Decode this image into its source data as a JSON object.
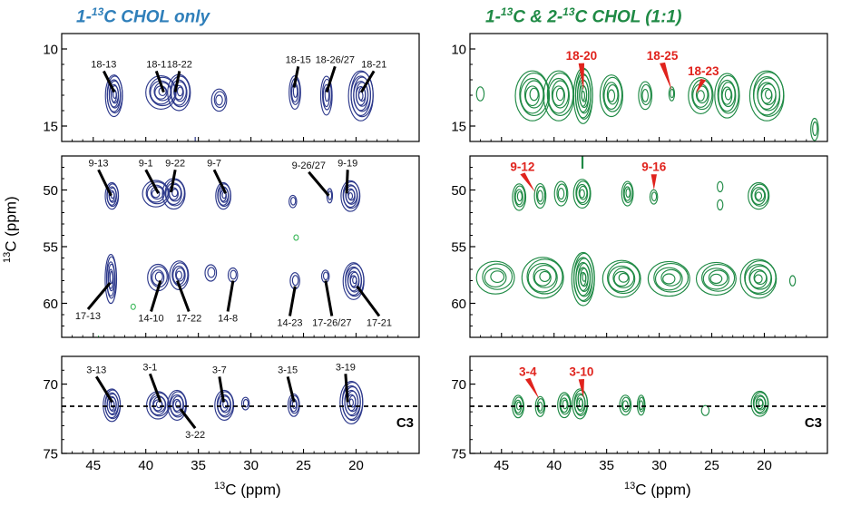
{
  "colors": {
    "left_contour": "#2e3a8c",
    "right_contour": "#1f8a45",
    "left_title": "#2f7fba",
    "right_title": "#1f8a45",
    "red_label": "#e0231d",
    "stray_green": "#2bb24c"
  },
  "chart_data": [
    {
      "type": "contour",
      "title": "1-13C CHOL only",
      "title_parts": {
        "pre": "1-",
        "sup": "13",
        "post": "C CHOL only"
      },
      "xlabel": "13C (ppm)",
      "xlabel_parts": {
        "sup": "13",
        "post": "C (ppm)"
      },
      "ylabel": "13C (ppm)",
      "ylabel_parts": {
        "sup": "13",
        "post": "C (ppm)"
      },
      "xlim": [
        48,
        14
      ],
      "xticks": [
        45,
        40,
        35,
        30,
        25,
        20
      ],
      "panels": [
        {
          "ylim": [
            9,
            16
          ],
          "yticks": [
            10,
            15
          ],
          "peaks": [
            {
              "x": 43.0,
              "y": 13.0,
              "sx": 0.9,
              "sy": 1.5,
              "levels": 8
            },
            {
              "x": 38.5,
              "y": 12.8,
              "sx": 1.6,
              "sy": 1.2,
              "levels": 6
            },
            {
              "x": 36.8,
              "y": 12.8,
              "sx": 1.2,
              "sy": 1.3,
              "levels": 6
            },
            {
              "x": 33.0,
              "y": 13.3,
              "sx": 0.8,
              "sy": 0.8,
              "levels": 3
            },
            {
              "x": 25.8,
              "y": 12.8,
              "sx": 0.6,
              "sy": 1.2,
              "levels": 4
            },
            {
              "x": 22.8,
              "y": 13.0,
              "sx": 0.6,
              "sy": 1.4,
              "levels": 4
            },
            {
              "x": 19.5,
              "y": 13.0,
              "sx": 1.3,
              "sy": 1.8,
              "levels": 9
            }
          ],
          "labels": [
            {
              "text": "18-13",
              "tx": 44.0,
              "ty": 11.2,
              "px": 43.0,
              "py": 12.8
            },
            {
              "text": "18-1",
              "tx": 39.0,
              "ty": 11.2,
              "px": 38.3,
              "py": 12.8
            },
            {
              "text": "18-22",
              "tx": 36.8,
              "ty": 11.2,
              "px": 37.2,
              "py": 12.8
            },
            {
              "text": "18-15",
              "tx": 25.5,
              "ty": 10.9,
              "px": 25.9,
              "py": 12.5
            },
            {
              "text": "18-26/27",
              "tx": 22.0,
              "ty": 10.9,
              "px": 22.8,
              "py": 12.8
            },
            {
              "text": "18-21",
              "tx": 18.3,
              "ty": 11.2,
              "px": 19.5,
              "py": 12.8
            }
          ]
        },
        {
          "ylim": [
            47,
            63
          ],
          "yticks": [
            50,
            55,
            60
          ],
          "peaks": [
            {
              "x": 43.2,
              "y": 50.5,
              "sx": 0.7,
              "sy": 1.3,
              "levels": 6
            },
            {
              "x": 39.0,
              "y": 50.3,
              "sx": 1.4,
              "sy": 1.3,
              "levels": 5
            },
            {
              "x": 37.3,
              "y": 50.3,
              "sx": 1.2,
              "sy": 1.5,
              "levels": 6
            },
            {
              "x": 32.6,
              "y": 50.5,
              "sx": 0.8,
              "sy": 1.3,
              "levels": 6
            },
            {
              "x": 26.0,
              "y": 51.0,
              "sx": 0.4,
              "sy": 0.6,
              "levels": 2
            },
            {
              "x": 22.5,
              "y": 50.5,
              "sx": 0.3,
              "sy": 0.7,
              "levels": 2
            },
            {
              "x": 20.5,
              "y": 50.5,
              "sx": 1.0,
              "sy": 1.5,
              "levels": 7
            },
            {
              "x": 43.3,
              "y": 57.8,
              "sx": 0.6,
              "sy": 2.4,
              "levels": 6
            },
            {
              "x": 38.8,
              "y": 57.7,
              "sx": 1.1,
              "sy": 1.3,
              "levels": 4
            },
            {
              "x": 36.8,
              "y": 57.5,
              "sx": 1.0,
              "sy": 1.4,
              "levels": 5
            },
            {
              "x": 33.8,
              "y": 57.3,
              "sx": 0.6,
              "sy": 0.8,
              "levels": 2
            },
            {
              "x": 31.7,
              "y": 57.5,
              "sx": 0.5,
              "sy": 0.7,
              "levels": 2
            },
            {
              "x": 25.8,
              "y": 58.0,
              "sx": 0.5,
              "sy": 0.8,
              "levels": 2
            },
            {
              "x": 22.9,
              "y": 57.6,
              "sx": 0.4,
              "sy": 0.6,
              "levels": 2
            },
            {
              "x": 20.2,
              "y": 58.0,
              "sx": 1.1,
              "sy": 1.8,
              "levels": 8
            }
          ],
          "labels": [
            {
              "text": "9-13",
              "tx": 44.5,
              "ty": 47.9,
              "px": 43.3,
              "py": 50.5
            },
            {
              "text": "9-1",
              "tx": 40.0,
              "ty": 47.9,
              "px": 38.8,
              "py": 50.3
            },
            {
              "text": "9-22",
              "tx": 37.2,
              "ty": 47.9,
              "px": 37.6,
              "py": 50.2
            },
            {
              "text": "9-7",
              "tx": 33.5,
              "ty": 47.9,
              "px": 32.4,
              "py": 50.3
            },
            {
              "text": "9-26/27",
              "tx": 24.5,
              "ty": 48.1,
              "px": 22.6,
              "py": 50.5
            },
            {
              "text": "9-19",
              "tx": 20.8,
              "ty": 47.9,
              "px": 20.9,
              "py": 50.3
            },
            {
              "text": "17-13",
              "tx": 45.5,
              "ty": 61.4,
              "px": 43.4,
              "py": 58.2
            },
            {
              "text": "14-10",
              "tx": 39.5,
              "ty": 61.6,
              "px": 38.6,
              "py": 58.0
            },
            {
              "text": "17-22",
              "tx": 35.9,
              "ty": 61.6,
              "px": 37.0,
              "py": 58.0
            },
            {
              "text": "14-8",
              "tx": 32.2,
              "ty": 61.6,
              "px": 31.7,
              "py": 58.0
            },
            {
              "text": "14-23",
              "tx": 26.3,
              "ty": 62.0,
              "px": 25.8,
              "py": 58.5
            },
            {
              "text": "17-26/27",
              "tx": 22.3,
              "ty": 62.0,
              "px": 22.9,
              "py": 58.0
            },
            {
              "text": "17-21",
              "tx": 17.8,
              "ty": 62.0,
              "px": 19.9,
              "py": 58.5
            }
          ]
        },
        {
          "ylim": [
            68,
            75
          ],
          "yticks": [
            70,
            75
          ],
          "peaks": [
            {
              "x": 43.2,
              "y": 71.5,
              "sx": 0.9,
              "sy": 1.3,
              "levels": 8
            },
            {
              "x": 38.8,
              "y": 71.5,
              "sx": 1.2,
              "sy": 1.1,
              "levels": 6
            },
            {
              "x": 37.0,
              "y": 71.5,
              "sx": 1.0,
              "sy": 1.2,
              "levels": 6
            },
            {
              "x": 32.5,
              "y": 71.5,
              "sx": 1.0,
              "sy": 1.2,
              "levels": 6
            },
            {
              "x": 30.5,
              "y": 71.4,
              "sx": 0.4,
              "sy": 0.5,
              "levels": 2
            },
            {
              "x": 25.9,
              "y": 71.5,
              "sx": 0.6,
              "sy": 0.9,
              "levels": 4
            },
            {
              "x": 20.4,
              "y": 71.3,
              "sx": 1.2,
              "sy": 1.7,
              "levels": 9
            }
          ],
          "labels": [
            {
              "text": "3-13",
              "tx": 44.7,
              "ty": 69.2,
              "px": 43.2,
              "py": 71.3
            },
            {
              "text": "3-1",
              "tx": 39.6,
              "ty": 69.0,
              "px": 38.6,
              "py": 71.3
            },
            {
              "text": "3-22",
              "tx": 35.3,
              "ty": 73.9,
              "px": 36.7,
              "py": 71.8
            },
            {
              "text": "3-7",
              "tx": 33.0,
              "ty": 69.2,
              "px": 32.6,
              "py": 71.3
            },
            {
              "text": "3-15",
              "tx": 26.5,
              "ty": 69.2,
              "px": 25.9,
              "py": 71.3
            },
            {
              "text": "3-19",
              "tx": 21.0,
              "ty": 69.0,
              "px": 20.8,
              "py": 71.3
            }
          ],
          "hline_y": 71.6,
          "hline_label": "C3"
        }
      ]
    },
    {
      "type": "contour",
      "title": "1-13C & 2-13C CHOL (1:1)",
      "title_parts": {
        "pre": "1-",
        "sup": "13",
        "mid": "C & 2-",
        "sup2": "13",
        "post": "C CHOL (1:1)"
      },
      "xlabel": "13C (ppm)",
      "xlabel_parts": {
        "sup": "13",
        "post": "C (ppm)"
      },
      "xlim": [
        48,
        14
      ],
      "xticks": [
        45,
        40,
        35,
        30,
        25,
        20
      ],
      "panels": [
        {
          "ylim": [
            9,
            16
          ],
          "yticks": [
            10,
            15
          ],
          "peaks": [
            {
              "x": 47.0,
              "y": 12.9,
              "sx": 0.4,
              "sy": 0.5,
              "levels": 1
            },
            {
              "x": 42.0,
              "y": 13.0,
              "sx": 1.8,
              "sy": 1.8,
              "levels": 6
            },
            {
              "x": 39.5,
              "y": 13.0,
              "sx": 1.6,
              "sy": 1.8,
              "levels": 6
            },
            {
              "x": 37.2,
              "y": 13.0,
              "sx": 1.0,
              "sy": 2.0,
              "levels": 9
            },
            {
              "x": 34.5,
              "y": 13.0,
              "sx": 1.2,
              "sy": 1.5,
              "levels": 5
            },
            {
              "x": 31.3,
              "y": 13.0,
              "sx": 0.7,
              "sy": 1.0,
              "levels": 3
            },
            {
              "x": 28.8,
              "y": 12.9,
              "sx": 0.3,
              "sy": 0.5,
              "levels": 2
            },
            {
              "x": 26.0,
              "y": 13.0,
              "sx": 1.3,
              "sy": 1.3,
              "levels": 5
            },
            {
              "x": 23.5,
              "y": 13.0,
              "sx": 1.3,
              "sy": 1.6,
              "levels": 6
            },
            {
              "x": 19.7,
              "y": 13.0,
              "sx": 1.8,
              "sy": 1.8,
              "levels": 8
            },
            {
              "x": 15.2,
              "y": 15.2,
              "sx": 0.4,
              "sy": 0.8,
              "levels": 2
            }
          ],
          "labels": [
            {
              "text": "18-20",
              "tx": 37.4,
              "ty": 10.7,
              "px": 37.2,
              "py": 12.7
            },
            {
              "text": "18-25",
              "tx": 29.7,
              "ty": 10.7,
              "px": 28.8,
              "py": 12.7
            },
            {
              "text": "18-23",
              "tx": 25.8,
              "ty": 11.7,
              "px": 26.5,
              "py": 12.9
            }
          ]
        },
        {
          "ylim": [
            47,
            63
          ],
          "yticks": [
            50,
            55,
            60
          ],
          "peaks": [
            {
              "x": 43.3,
              "y": 50.6,
              "sx": 0.7,
              "sy": 1.3,
              "levels": 4
            },
            {
              "x": 41.3,
              "y": 50.5,
              "sx": 0.6,
              "sy": 1.2,
              "levels": 3
            },
            {
              "x": 39.3,
              "y": 50.3,
              "sx": 0.7,
              "sy": 1.2,
              "levels": 3
            },
            {
              "x": 37.3,
              "y": 50.3,
              "sx": 0.9,
              "sy": 1.4,
              "levels": 5
            },
            {
              "x": 33.0,
              "y": 50.3,
              "sx": 0.6,
              "sy": 1.2,
              "levels": 4
            },
            {
              "x": 30.5,
              "y": 50.6,
              "sx": 0.4,
              "sy": 0.7,
              "levels": 2
            },
            {
              "x": 24.2,
              "y": 49.7,
              "sx": 0.3,
              "sy": 0.5,
              "levels": 1
            },
            {
              "x": 24.2,
              "y": 51.3,
              "sx": 0.3,
              "sy": 0.5,
              "levels": 1
            },
            {
              "x": 20.5,
              "y": 50.5,
              "sx": 1.1,
              "sy": 1.3,
              "levels": 5
            },
            {
              "x": 45.5,
              "y": 57.7,
              "sx": 2.0,
              "sy": 1.6,
              "levels": 4
            },
            {
              "x": 41.0,
              "y": 57.7,
              "sx": 2.2,
              "sy": 2.0,
              "levels": 6
            },
            {
              "x": 37.2,
              "y": 57.8,
              "sx": 1.2,
              "sy": 2.6,
              "levels": 10
            },
            {
              "x": 33.5,
              "y": 57.8,
              "sx": 2.0,
              "sy": 1.8,
              "levels": 6
            },
            {
              "x": 29.0,
              "y": 57.8,
              "sx": 2.2,
              "sy": 1.7,
              "levels": 5
            },
            {
              "x": 24.5,
              "y": 57.8,
              "sx": 2.1,
              "sy": 1.6,
              "levels": 5
            },
            {
              "x": 20.5,
              "y": 57.8,
              "sx": 1.9,
              "sy": 1.9,
              "levels": 7
            },
            {
              "x": 17.3,
              "y": 58.0,
              "sx": 0.3,
              "sy": 0.5,
              "levels": 1
            }
          ],
          "labels": [
            {
              "text": "9-12",
              "tx": 43.0,
              "ty": 48.3,
              "px": 41.8,
              "py": 50.2
            },
            {
              "text": "9-16",
              "tx": 30.5,
              "ty": 48.3,
              "px": 30.5,
              "py": 50.0
            }
          ]
        },
        {
          "ylim": [
            68,
            75
          ],
          "yticks": [
            70,
            75
          ],
          "peaks": [
            {
              "x": 43.4,
              "y": 71.6,
              "sx": 0.6,
              "sy": 0.9,
              "levels": 4
            },
            {
              "x": 41.3,
              "y": 71.6,
              "sx": 0.5,
              "sy": 0.8,
              "levels": 3
            },
            {
              "x": 39.0,
              "y": 71.5,
              "sx": 0.7,
              "sy": 1.0,
              "levels": 4
            },
            {
              "x": 37.5,
              "y": 71.4,
              "sx": 0.8,
              "sy": 1.2,
              "levels": 6
            },
            {
              "x": 33.2,
              "y": 71.5,
              "sx": 0.6,
              "sy": 0.8,
              "levels": 3
            },
            {
              "x": 31.7,
              "y": 71.5,
              "sx": 0.4,
              "sy": 0.8,
              "levels": 3
            },
            {
              "x": 25.6,
              "y": 71.9,
              "sx": 0.4,
              "sy": 0.4,
              "levels": 1
            },
            {
              "x": 20.4,
              "y": 71.4,
              "sx": 0.9,
              "sy": 1.0,
              "levels": 6
            }
          ],
          "labels": [
            {
              "text": "3-4",
              "tx": 42.5,
              "ty": 69.4,
              "px": 41.4,
              "py": 71.1
            },
            {
              "text": "3-10",
              "tx": 37.4,
              "ty": 69.4,
              "px": 37.2,
              "py": 71.0
            }
          ],
          "hline_y": 71.6,
          "hline_label": "C3"
        }
      ]
    }
  ]
}
